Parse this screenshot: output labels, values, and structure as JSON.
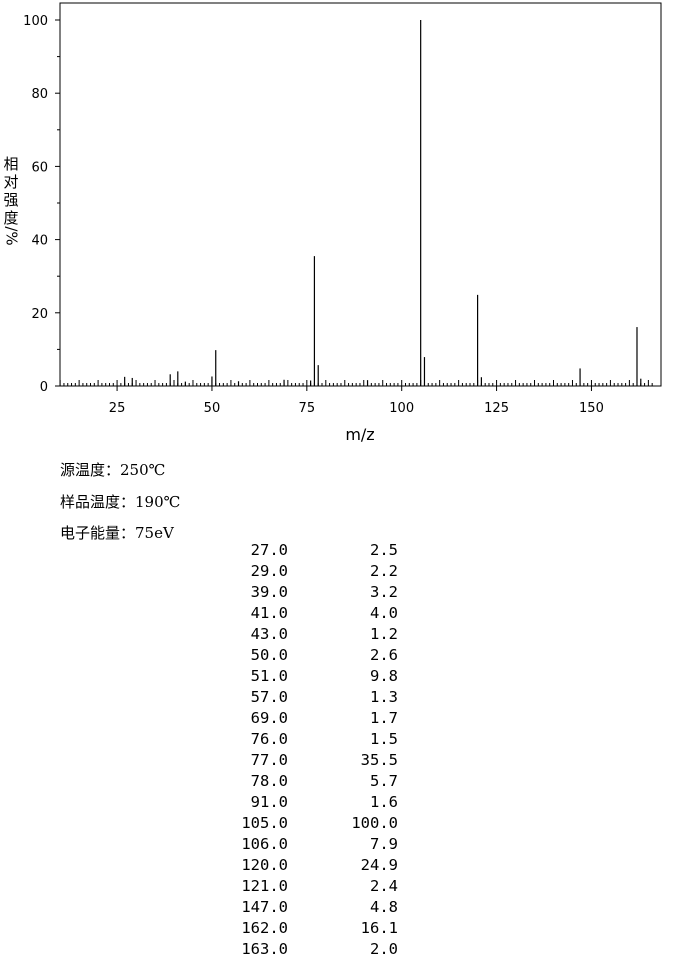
{
  "chart_data": {
    "type": "bar",
    "xlabel": "m/z",
    "ylabel_chars": [
      "相",
      "对",
      "强",
      "度"
    ],
    "ylabel_unit": "/%",
    "xlim": [
      10,
      166
    ],
    "ylim": [
      0,
      100
    ],
    "xticks": [
      25,
      50,
      75,
      100,
      125,
      150
    ],
    "yticks": [
      0,
      20,
      40,
      60,
      80,
      100
    ],
    "grid": false,
    "peaks": [
      {
        "mz": 27.0,
        "intensity": 2.5
      },
      {
        "mz": 29.0,
        "intensity": 2.2
      },
      {
        "mz": 39.0,
        "intensity": 3.2
      },
      {
        "mz": 41.0,
        "intensity": 4.0
      },
      {
        "mz": 43.0,
        "intensity": 1.2
      },
      {
        "mz": 50.0,
        "intensity": 2.6
      },
      {
        "mz": 51.0,
        "intensity": 9.8
      },
      {
        "mz": 57.0,
        "intensity": 1.3
      },
      {
        "mz": 69.0,
        "intensity": 1.7
      },
      {
        "mz": 76.0,
        "intensity": 1.5
      },
      {
        "mz": 77.0,
        "intensity": 35.5
      },
      {
        "mz": 78.0,
        "intensity": 5.7
      },
      {
        "mz": 91.0,
        "intensity": 1.6
      },
      {
        "mz": 105.0,
        "intensity": 100.0
      },
      {
        "mz": 106.0,
        "intensity": 7.9
      },
      {
        "mz": 120.0,
        "intensity": 24.9
      },
      {
        "mz": 121.0,
        "intensity": 2.4
      },
      {
        "mz": 147.0,
        "intensity": 4.8
      },
      {
        "mz": 162.0,
        "intensity": 16.1
      },
      {
        "mz": 163.0,
        "intensity": 2.0
      }
    ]
  },
  "conditions": {
    "source_temp_label": "源温度：",
    "source_temp_value": "250℃",
    "sample_temp_label": "样品温度：",
    "sample_temp_value": "190℃",
    "electron_energy_label": "电子能量：",
    "electron_energy_value": "75eV"
  },
  "peak_table": [
    {
      "mz": "27.0",
      "intensity": "2.5"
    },
    {
      "mz": "29.0",
      "intensity": "2.2"
    },
    {
      "mz": "39.0",
      "intensity": "3.2"
    },
    {
      "mz": "41.0",
      "intensity": "4.0"
    },
    {
      "mz": "43.0",
      "intensity": "1.2"
    },
    {
      "mz": "50.0",
      "intensity": "2.6"
    },
    {
      "mz": "51.0",
      "intensity": "9.8"
    },
    {
      "mz": "57.0",
      "intensity": "1.3"
    },
    {
      "mz": "69.0",
      "intensity": "1.7"
    },
    {
      "mz": "76.0",
      "intensity": "1.5"
    },
    {
      "mz": "77.0",
      "intensity": "35.5"
    },
    {
      "mz": "78.0",
      "intensity": "5.7"
    },
    {
      "mz": "91.0",
      "intensity": "1.6"
    },
    {
      "mz": "105.0",
      "intensity": "100.0"
    },
    {
      "mz": "106.0",
      "intensity": "7.9"
    },
    {
      "mz": "120.0",
      "intensity": "24.9"
    },
    {
      "mz": "121.0",
      "intensity": "2.4"
    },
    {
      "mz": "147.0",
      "intensity": "4.8"
    },
    {
      "mz": "162.0",
      "intensity": "16.1"
    },
    {
      "mz": "163.0",
      "intensity": "2.0"
    }
  ]
}
